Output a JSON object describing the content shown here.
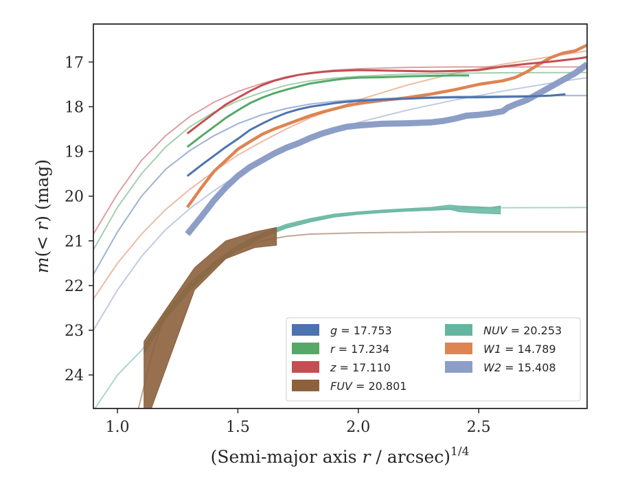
{
  "chart_data": {
    "type": "line",
    "title": "",
    "xlabel_prefix": "(Semi-major axis ",
    "xlabel_var": "r",
    "xlabel_mid": " / arcsec)",
    "xlabel_exp": "1/4",
    "ylabel_var1": "m",
    "ylabel_paren": "(< ",
    "ylabel_var2": "r",
    "ylabel_close": ") (mag)",
    "xlim": [
      0.9,
      2.95
    ],
    "ylim": [
      24.75,
      16.15
    ],
    "y_inverted": true,
    "x_ticks": [
      1.0,
      1.5,
      2.0,
      2.5
    ],
    "x_tick_labels": [
      "1.0",
      "1.5",
      "2.0",
      "2.5"
    ],
    "y_ticks": [
      17,
      18,
      19,
      20,
      21,
      22,
      23,
      24
    ],
    "y_tick_labels": [
      "17",
      "18",
      "19",
      "20",
      "21",
      "22",
      "23",
      "24"
    ],
    "grid": false,
    "legend_position": "lower-right",
    "series": [
      {
        "key": "g",
        "band": "g",
        "value": "17.753",
        "color": "#4c72b0",
        "data": [
          [
            1.29,
            19.55
          ],
          [
            1.35,
            19.3
          ],
          [
            1.4,
            19.1
          ],
          [
            1.45,
            18.9
          ],
          [
            1.5,
            18.72
          ],
          [
            1.55,
            18.52
          ],
          [
            1.6,
            18.38
          ],
          [
            1.65,
            18.25
          ],
          [
            1.7,
            18.14
          ],
          [
            1.75,
            18.06
          ],
          [
            1.8,
            18.0
          ],
          [
            1.85,
            17.96
          ],
          [
            1.9,
            17.92
          ],
          [
            1.95,
            17.89
          ],
          [
            2.0,
            17.87
          ],
          [
            2.1,
            17.84
          ],
          [
            2.2,
            17.82
          ],
          [
            2.3,
            17.8
          ],
          [
            2.4,
            17.79
          ],
          [
            2.5,
            17.79
          ],
          [
            2.6,
            17.78
          ],
          [
            2.7,
            17.77
          ],
          [
            2.8,
            17.75
          ],
          [
            2.86,
            17.72
          ]
        ],
        "model": [
          [
            0.9,
            21.75
          ],
          [
            1.0,
            20.8
          ],
          [
            1.1,
            20.0
          ],
          [
            1.2,
            19.4
          ],
          [
            1.3,
            18.98
          ],
          [
            1.4,
            18.65
          ],
          [
            1.5,
            18.38
          ],
          [
            1.6,
            18.18
          ],
          [
            1.7,
            18.04
          ],
          [
            1.8,
            17.94
          ],
          [
            1.9,
            17.88
          ],
          [
            2.0,
            17.84
          ],
          [
            2.2,
            17.8
          ],
          [
            2.4,
            17.77
          ],
          [
            2.6,
            17.76
          ],
          [
            2.8,
            17.75
          ],
          [
            2.95,
            17.75
          ]
        ]
      },
      {
        "key": "r",
        "band": "r",
        "value": "17.234",
        "color": "#55a868",
        "data": [
          [
            1.29,
            18.9
          ],
          [
            1.35,
            18.65
          ],
          [
            1.4,
            18.45
          ],
          [
            1.45,
            18.25
          ],
          [
            1.5,
            18.08
          ],
          [
            1.55,
            17.92
          ],
          [
            1.6,
            17.8
          ],
          [
            1.65,
            17.7
          ],
          [
            1.7,
            17.62
          ],
          [
            1.75,
            17.55
          ],
          [
            1.8,
            17.48
          ],
          [
            1.85,
            17.44
          ],
          [
            1.9,
            17.4
          ],
          [
            1.95,
            17.37
          ],
          [
            2.0,
            17.35
          ],
          [
            2.1,
            17.34
          ],
          [
            2.2,
            17.32
          ],
          [
            2.3,
            17.31
          ],
          [
            2.4,
            17.3
          ],
          [
            2.46,
            17.3
          ]
        ],
        "model": [
          [
            0.9,
            21.2
          ],
          [
            1.0,
            20.25
          ],
          [
            1.1,
            19.5
          ],
          [
            1.2,
            18.9
          ],
          [
            1.3,
            18.45
          ],
          [
            1.4,
            18.12
          ],
          [
            1.5,
            17.87
          ],
          [
            1.6,
            17.68
          ],
          [
            1.7,
            17.52
          ],
          [
            1.8,
            17.42
          ],
          [
            1.9,
            17.36
          ],
          [
            2.0,
            17.32
          ],
          [
            2.2,
            17.27
          ],
          [
            2.4,
            17.25
          ],
          [
            2.6,
            17.24
          ],
          [
            2.8,
            17.235
          ],
          [
            2.95,
            17.234
          ]
        ]
      },
      {
        "key": "z",
        "band": "z",
        "value": "17.110",
        "color": "#c44e52",
        "data": [
          [
            1.29,
            18.6
          ],
          [
            1.35,
            18.35
          ],
          [
            1.4,
            18.15
          ],
          [
            1.45,
            17.95
          ],
          [
            1.5,
            17.8
          ],
          [
            1.55,
            17.65
          ],
          [
            1.6,
            17.52
          ],
          [
            1.65,
            17.42
          ],
          [
            1.7,
            17.35
          ],
          [
            1.75,
            17.29
          ],
          [
            1.8,
            17.25
          ],
          [
            1.85,
            17.22
          ],
          [
            1.9,
            17.2
          ],
          [
            1.95,
            17.19
          ],
          [
            2.0,
            17.18
          ],
          [
            2.1,
            17.19
          ],
          [
            2.2,
            17.2
          ],
          [
            2.3,
            17.21
          ],
          [
            2.4,
            17.2
          ],
          [
            2.5,
            17.18
          ],
          [
            2.6,
            17.1
          ],
          [
            2.7,
            17.04
          ],
          [
            2.8,
            16.99
          ],
          [
            2.9,
            16.93
          ],
          [
            2.95,
            16.89
          ]
        ],
        "model": [
          [
            0.9,
            20.85
          ],
          [
            1.0,
            19.95
          ],
          [
            1.1,
            19.2
          ],
          [
            1.2,
            18.65
          ],
          [
            1.3,
            18.22
          ],
          [
            1.4,
            17.9
          ],
          [
            1.5,
            17.66
          ],
          [
            1.6,
            17.48
          ],
          [
            1.7,
            17.33
          ],
          [
            1.8,
            17.24
          ],
          [
            1.9,
            17.18
          ],
          [
            2.0,
            17.15
          ],
          [
            2.2,
            17.12
          ],
          [
            2.4,
            17.11
          ],
          [
            2.6,
            17.11
          ],
          [
            2.8,
            17.11
          ],
          [
            2.95,
            17.11
          ]
        ]
      },
      {
        "key": "FUV",
        "band": "FUV",
        "value": "20.801",
        "color": "#8c613c",
        "data_band": [
          [
            1.11,
            23.25,
            25.2
          ],
          [
            1.32,
            21.6,
            22.1
          ],
          [
            1.45,
            21.0,
            21.4
          ],
          [
            1.57,
            20.8,
            21.15
          ],
          [
            1.66,
            20.7,
            21.1
          ]
        ],
        "model": [
          [
            1.08,
            24.9
          ],
          [
            1.15,
            23.4
          ],
          [
            1.2,
            22.6
          ],
          [
            1.3,
            21.95
          ],
          [
            1.4,
            21.5
          ],
          [
            1.5,
            21.2
          ],
          [
            1.6,
            21.0
          ],
          [
            1.7,
            20.9
          ],
          [
            1.8,
            20.85
          ],
          [
            2.0,
            20.82
          ],
          [
            2.4,
            20.8
          ],
          [
            2.95,
            20.8
          ]
        ]
      },
      {
        "key": "NUV",
        "band": "NUV",
        "value": "20.253",
        "color": "#64b5a0",
        "data_band": [
          [
            1.11,
            23.38,
            23.52
          ],
          [
            1.2,
            22.58,
            22.75
          ],
          [
            1.3,
            21.95,
            22.12
          ],
          [
            1.4,
            21.48,
            21.6
          ],
          [
            1.5,
            21.1,
            21.2
          ],
          [
            1.6,
            20.83,
            20.93
          ],
          [
            1.7,
            20.63,
            20.72
          ],
          [
            1.8,
            20.5,
            20.58
          ],
          [
            1.9,
            20.4,
            20.47
          ],
          [
            2.0,
            20.35,
            20.41
          ],
          [
            2.1,
            20.31,
            20.37
          ],
          [
            2.2,
            20.28,
            20.34
          ],
          [
            2.3,
            20.25,
            20.32
          ],
          [
            2.38,
            20.2,
            20.3
          ],
          [
            2.42,
            20.22,
            20.35
          ],
          [
            2.5,
            20.24,
            20.38
          ],
          [
            2.55,
            20.25,
            20.39
          ],
          [
            2.59,
            20.22,
            20.4
          ]
        ],
        "model": [
          [
            0.9,
            24.8
          ],
          [
            1.0,
            24.0
          ],
          [
            1.1,
            23.45
          ],
          [
            1.2,
            22.7
          ],
          [
            1.3,
            22.05
          ],
          [
            1.4,
            21.55
          ],
          [
            1.5,
            21.15
          ],
          [
            1.6,
            20.88
          ],
          [
            1.7,
            20.68
          ],
          [
            1.8,
            20.54
          ],
          [
            1.9,
            20.44
          ],
          [
            2.0,
            20.38
          ],
          [
            2.2,
            20.31
          ],
          [
            2.4,
            20.27
          ],
          [
            2.6,
            20.26
          ],
          [
            2.95,
            20.253
          ]
        ]
      },
      {
        "key": "W1",
        "band": "W1",
        "value": "14.789",
        "color": "#dd8452",
        "data": [
          [
            1.29,
            20.25
          ],
          [
            1.35,
            19.8
          ],
          [
            1.4,
            19.45
          ],
          [
            1.45,
            19.2
          ],
          [
            1.5,
            18.95
          ],
          [
            1.55,
            18.78
          ],
          [
            1.6,
            18.62
          ],
          [
            1.65,
            18.5
          ],
          [
            1.7,
            18.4
          ],
          [
            1.75,
            18.3
          ],
          [
            1.8,
            18.2
          ],
          [
            1.85,
            18.12
          ],
          [
            1.9,
            18.05
          ],
          [
            1.95,
            17.98
          ],
          [
            2.0,
            17.93
          ],
          [
            2.1,
            17.86
          ],
          [
            2.2,
            17.8
          ],
          [
            2.3,
            17.72
          ],
          [
            2.4,
            17.62
          ],
          [
            2.5,
            17.5
          ],
          [
            2.6,
            17.42
          ],
          [
            2.65,
            17.35
          ],
          [
            2.7,
            17.22
          ],
          [
            2.75,
            17.05
          ],
          [
            2.8,
            16.9
          ],
          [
            2.85,
            16.8
          ],
          [
            2.9,
            16.75
          ],
          [
            2.95,
            16.62
          ]
        ],
        "model": [
          [
            0.9,
            22.3
          ],
          [
            1.0,
            21.5
          ],
          [
            1.1,
            20.85
          ],
          [
            1.2,
            20.3
          ],
          [
            1.3,
            19.85
          ],
          [
            1.4,
            19.45
          ],
          [
            1.5,
            19.08
          ],
          [
            1.6,
            18.78
          ],
          [
            1.7,
            18.5
          ],
          [
            1.8,
            18.25
          ],
          [
            1.9,
            18.05
          ],
          [
            2.0,
            17.85
          ],
          [
            2.2,
            17.52
          ],
          [
            2.4,
            17.25
          ],
          [
            2.6,
            17.05
          ],
          [
            2.8,
            16.88
          ],
          [
            2.95,
            16.75
          ]
        ]
      },
      {
        "key": "W2",
        "band": "W2",
        "value": "15.408",
        "color": "#8c9ec6",
        "data": [
          [
            1.29,
            20.85
          ],
          [
            1.35,
            20.45
          ],
          [
            1.4,
            20.1
          ],
          [
            1.45,
            19.8
          ],
          [
            1.5,
            19.55
          ],
          [
            1.55,
            19.35
          ],
          [
            1.6,
            19.2
          ],
          [
            1.65,
            19.05
          ],
          [
            1.7,
            18.92
          ],
          [
            1.75,
            18.82
          ],
          [
            1.8,
            18.7
          ],
          [
            1.85,
            18.6
          ],
          [
            1.9,
            18.52
          ],
          [
            1.95,
            18.45
          ],
          [
            2.0,
            18.42
          ],
          [
            2.1,
            18.38
          ],
          [
            2.2,
            18.37
          ],
          [
            2.3,
            18.35
          ],
          [
            2.35,
            18.32
          ],
          [
            2.4,
            18.27
          ],
          [
            2.45,
            18.2
          ],
          [
            2.5,
            18.18
          ],
          [
            2.55,
            18.15
          ],
          [
            2.6,
            18.1
          ],
          [
            2.62,
            18.02
          ],
          [
            2.65,
            17.95
          ],
          [
            2.7,
            17.85
          ],
          [
            2.75,
            17.7
          ],
          [
            2.8,
            17.55
          ],
          [
            2.85,
            17.4
          ],
          [
            2.9,
            17.25
          ],
          [
            2.95,
            17.05
          ]
        ],
        "model": [
          [
            0.9,
            23.0
          ],
          [
            1.0,
            22.1
          ],
          [
            1.1,
            21.35
          ],
          [
            1.2,
            20.75
          ],
          [
            1.3,
            20.28
          ],
          [
            1.4,
            19.88
          ],
          [
            1.5,
            19.52
          ],
          [
            1.6,
            19.22
          ],
          [
            1.7,
            18.95
          ],
          [
            1.8,
            18.72
          ],
          [
            1.9,
            18.52
          ],
          [
            2.0,
            18.35
          ],
          [
            2.2,
            18.08
          ],
          [
            2.4,
            17.85
          ],
          [
            2.6,
            17.65
          ],
          [
            2.8,
            17.47
          ],
          [
            2.95,
            17.35
          ]
        ]
      }
    ],
    "legend": [
      {
        "key": "g",
        "var": "g",
        "eq": " = 17.753",
        "color": "#4c72b0"
      },
      {
        "key": "r",
        "var": "r",
        "eq": " = 17.234",
        "color": "#55a868"
      },
      {
        "key": "z",
        "var": "z",
        "eq": " = 17.110",
        "color": "#c44e52"
      },
      {
        "key": "FUV",
        "var": "FUV",
        "eq": " = 20.801",
        "color": "#8c613c"
      },
      {
        "key": "NUV",
        "var": "NUV",
        "eq": " = 20.253",
        "color": "#64b5a0"
      },
      {
        "key": "W1",
        "var": "W1",
        "eq": " = 14.789",
        "color": "#dd8452"
      },
      {
        "key": "W2",
        "var": "W2",
        "eq": " = 15.408",
        "color": "#8c9ec6"
      }
    ]
  }
}
